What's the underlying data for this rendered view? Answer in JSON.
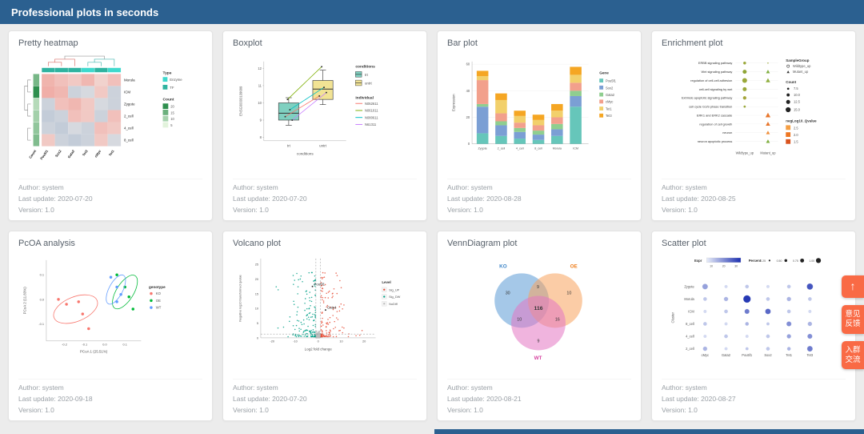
{
  "header": {
    "title": "Professional plots in seconds"
  },
  "float_buttons": {
    "top_icon": "↑",
    "feedback_line1": "意见",
    "feedback_line2": "反馈",
    "group_line1": "入群",
    "group_line2": "交流"
  },
  "cards": [
    {
      "title": "Pretty heatmap",
      "author": "Author: system",
      "updated": "Last update: 2020-07-20",
      "version": "Version: 1.0",
      "chart_data": {
        "type": "heatmap",
        "rows": [
          "Morula",
          "ICM",
          "Zygote",
          "2_cell",
          "4_cell",
          "8_cell"
        ],
        "cols": [
          "Pou5f1",
          "Sox2",
          "Gata2",
          "Tet3",
          "cMyc",
          "Tet1"
        ],
        "col_labels_bottom": [
          "Count",
          "Pou5f1",
          "Sox2",
          "Gata2",
          "Tet3",
          "cMyc",
          "Tet1"
        ],
        "col_type": [
          "TF",
          "TF",
          "TF",
          "Enzyme",
          "TF",
          "Enzyme"
        ],
        "type_colors": {
          "Enzyme": "#3fd9cd",
          "TF": "#2fb3a0"
        },
        "row_counts": [
          12,
          20,
          5,
          7,
          9,
          11
        ],
        "values": [
          [
            0.82,
            0.75,
            0.7,
            0.8,
            0.65,
            0.75
          ],
          [
            0.85,
            0.8,
            0.3,
            0.35,
            0.7,
            0.3
          ],
          [
            0.3,
            0.75,
            0.8,
            0.7,
            0.35,
            0.3
          ],
          [
            0.25,
            0.3,
            0.75,
            0.7,
            0.3,
            0.75
          ],
          [
            0.3,
            0.25,
            0.35,
            0.3,
            0.75,
            0.7
          ],
          [
            0.7,
            0.3,
            0.25,
            0.3,
            0.7,
            0.35
          ]
        ],
        "legend_type": {
          "title": "Type",
          "items": [
            {
              "label": "Enzyme",
              "color": "#3fd9cd"
            },
            {
              "label": "TF",
              "color": "#2fb3a0"
            }
          ]
        },
        "legend_count": {
          "title": "Count",
          "labels": [
            "20",
            "15",
            "10",
            "5"
          ]
        }
      }
    },
    {
      "title": "Boxplot",
      "author": "Author: system",
      "updated": "Last update: 2020-07-20",
      "version": "Version: 1.0",
      "chart_data": {
        "type": "boxplot",
        "ylabel": "ENSG00000109689",
        "xlabel": "conditions",
        "yticks": [
          8,
          9,
          10,
          11,
          12
        ],
        "ylim": [
          7.8,
          12.4
        ],
        "legend_conditions_title": "conditions",
        "legend_individual_title": "individual",
        "groups": [
          {
            "label": "trt",
            "color": "#7fd0c0",
            "box": {
              "low": 8.7,
              "q1": 9.0,
              "med": 9.4,
              "q3": 10.0,
              "high": 10.3
            }
          },
          {
            "label": "untrt",
            "color": "#f2e394",
            "box": {
              "low": 9.9,
              "q1": 10.2,
              "med": 10.8,
              "q3": 11.3,
              "high": 11.9
            }
          }
        ],
        "individuals": [
          {
            "label": "N052611",
            "color": "#F8766D",
            "trt": 9.2,
            "untrt": 10.4
          },
          {
            "label": "N061011",
            "color": "#7CAE00",
            "trt": 10.2,
            "untrt": 12.1
          },
          {
            "label": "N080611",
            "color": "#00BFC4",
            "trt": 9.6,
            "untrt": 10.9
          },
          {
            "label": "N61311",
            "color": "#C77CFF",
            "trt": 9.0,
            "untrt": 10.6
          }
        ]
      }
    },
    {
      "title": "Bar plot",
      "author": "Author: system",
      "updated": "Last update: 2020-08-28",
      "version": "Version: 1.0",
      "chart_data": {
        "type": "stacked_bar",
        "ylabel": "Expression",
        "legend_title": "Gene",
        "categories": [
          "Zygote",
          "2_cell",
          "4_cell",
          "8_cell",
          "Morula",
          "ICM"
        ],
        "yticks": [
          0,
          20,
          40,
          60
        ],
        "ylim": [
          0,
          62
        ],
        "series": [
          {
            "name": "Pou5f1",
            "color": "#66c6ba",
            "values": [
              8,
              6,
              4,
              3,
              6,
              28
            ]
          },
          {
            "name": "Sox2",
            "color": "#7b9fd4",
            "values": [
              20,
              8,
              5,
              4,
              5,
              8
            ]
          },
          {
            "name": "Gata2",
            "color": "#8fce8f",
            "values": [
              2,
              3,
              3,
              3,
              4,
              4
            ]
          },
          {
            "name": "cMyc",
            "color": "#f2a08c",
            "values": [
              18,
              6,
              4,
              4,
              5,
              6
            ]
          },
          {
            "name": "Tet1",
            "color": "#f2d06b",
            "values": [
              3,
              10,
              5,
              4,
              5,
              6
            ]
          },
          {
            "name": "Tet3",
            "color": "#f5a623",
            "values": [
              4,
              5,
              4,
              4,
              5,
              6
            ]
          }
        ]
      }
    },
    {
      "title": "Enrichment plot",
      "author": "Author: system",
      "updated": "Last update: 2020-08-25",
      "version": "Version: 1.0",
      "chart_data": {
        "type": "dot_matrix",
        "x_categories": [
          "Wildtype_up",
          "Mutant_up"
        ],
        "pathways": [
          "ERBB signaling pathway",
          "Wnt signaling pathway",
          "regulation of cell-cell adhesion",
          "cell-cell signaling by wnt",
          "Extrinsic apoptotic signaling pathway",
          "cell cycle G1/S phase transition",
          "ERK1 and ERK2 cascade",
          "regulation of cell growth",
          "neuron",
          "neuron apoptotic process"
        ],
        "points": [
          {
            "r": 0,
            "c": 0,
            "shape": "circle",
            "s": 1.8,
            "color": "#9aa83a"
          },
          {
            "r": 0,
            "c": 1,
            "shape": "circle",
            "s": 0.8,
            "color": "#9aa83a"
          },
          {
            "r": 1,
            "c": 0,
            "shape": "circle",
            "s": 2.6,
            "color": "#8fa536"
          },
          {
            "r": 1,
            "c": 1,
            "shape": "triangle",
            "s": 2.6,
            "color": "#7fae3e"
          },
          {
            "r": 2,
            "c": 0,
            "shape": "circle",
            "s": 3.1,
            "color": "#9aa83a"
          },
          {
            "r": 2,
            "c": 1,
            "shape": "triangle",
            "s": 3.0,
            "color": "#8fae3e"
          },
          {
            "r": 3,
            "c": 0,
            "shape": "circle",
            "s": 2.6,
            "color": "#9aa83a"
          },
          {
            "r": 4,
            "c": 0,
            "shape": "circle",
            "s": 2.2,
            "color": "#a5a53a"
          },
          {
            "r": 5,
            "c": 0,
            "shape": "circle",
            "s": 1.4,
            "color": "#9aa83a"
          },
          {
            "r": 6,
            "c": 1,
            "shape": "triangle",
            "s": 3.4,
            "color": "#e8762c"
          },
          {
            "r": 7,
            "c": 1,
            "shape": "triangle",
            "s": 3.0,
            "color": "#e8762c"
          },
          {
            "r": 8,
            "c": 1,
            "shape": "triangle",
            "s": 2.6,
            "color": "#ef8f3a"
          },
          {
            "r": 9,
            "c": 1,
            "shape": "triangle",
            "s": 2.6,
            "color": "#7fae3e"
          }
        ],
        "legend_sample_group": {
          "title": "SampleGroup",
          "items": [
            "Wildtype_up",
            "Mutant_up"
          ]
        },
        "legend_count": {
          "title": "Count",
          "labels": [
            "7.5",
            "10.0",
            "12.5",
            "15.0"
          ]
        },
        "legend_qvalue": {
          "title": "negLog10_Qvalue",
          "labels": [
            "2.5",
            "2.0",
            "1.5"
          ],
          "colors": [
            "#f59e42",
            "#ee7621",
            "#d9531e"
          ]
        }
      }
    },
    {
      "title": "PcOA analysis",
      "author": "Author: system",
      "updated": "Last update: 2020-09-18",
      "version": "Version: 1.0",
      "chart_data": {
        "type": "scatter",
        "xlabel": "PCoA 1 (25.51%)",
        "ylabel": "PCoA 2 (11.83%)",
        "xticks": [
          -0.2,
          -0.1,
          0.0,
          0.1
        ],
        "yticks": [
          -0.1,
          0.0,
          0.1
        ],
        "xlim": [
          -0.29,
          0.18
        ],
        "ylim": [
          -0.17,
          0.16
        ],
        "legend_title": "genotype",
        "groups": [
          {
            "name": "KO",
            "color": "#F8766D",
            "points": [
              [
                -0.23,
                0.0
              ],
              [
                -0.19,
                -0.02
              ],
              [
                -0.13,
                -0.01
              ],
              [
                -0.11,
                -0.06
              ],
              [
                -0.08,
                -0.12
              ]
            ],
            "ellipse": {
              "cx": -0.145,
              "cy": -0.04,
              "rx": 0.115,
              "ry": 0.05,
              "angle": -22
            }
          },
          {
            "name": "OE",
            "color": "#00BA38",
            "points": [
              [
                0.06,
                0.1
              ],
              [
                0.1,
                0.05
              ],
              [
                0.12,
                0.01
              ],
              [
                0.14,
                -0.04
              ]
            ],
            "ellipse": {
              "cx": 0.1,
              "cy": 0.03,
              "rx": 0.095,
              "ry": 0.035,
              "angle": -58
            }
          },
          {
            "name": "WT",
            "color": "#619CFF",
            "points": [
              [
                0.03,
                0.09
              ],
              [
                0.06,
                0.05
              ],
              [
                0.08,
                0.02
              ],
              [
                0.06,
                -0.01
              ]
            ],
            "ellipse": {
              "cx": 0.055,
              "cy": 0.04,
              "rx": 0.08,
              "ry": 0.028,
              "angle": -62
            }
          }
        ]
      }
    },
    {
      "title": "Volcano plot",
      "author": "Author: system",
      "updated": "Last update: 2020-07-20",
      "version": "Version: 1.0",
      "chart_data": {
        "type": "volcano",
        "xlabel": "Log2 fold change",
        "ylabel": "Negative log10 transformed qvalue",
        "xticks": [
          -20,
          -10,
          0,
          10,
          20
        ],
        "yticks": [
          0,
          5,
          10,
          15,
          20,
          25
        ],
        "xlim": [
          -25,
          25
        ],
        "ylim": [
          0,
          27
        ],
        "vlines": [
          -1,
          1
        ],
        "hline": 1.3,
        "legend_title": "Level",
        "classes": [
          {
            "name": "Sig_UP",
            "color": "#E64B35",
            "n": 130
          },
          {
            "name": "Sig_DW",
            "color": "#00A087",
            "n": 150
          },
          {
            "name": "NoDiff",
            "color": "#BDBDBD",
            "n": 160
          }
        ],
        "annotations": [
          {
            "label": "Pou5f1",
            "x": -2.5,
            "y": 17.5
          },
          {
            "label": "Gata4",
            "x": 3.2,
            "y": 9.5
          }
        ],
        "seed": 42
      }
    },
    {
      "title": "VennDiagram plot",
      "author": "Author: system",
      "updated": "Last update: 2020-08-21",
      "version": "Version: 1.0",
      "chart_data": {
        "type": "venn",
        "sets": [
          {
            "name": "KO",
            "fill": "#5b9bd5",
            "label_color": "#3d85c8"
          },
          {
            "name": "OE",
            "fill": "#f7a35c",
            "label_color": "#ef7d1a"
          },
          {
            "name": "WT",
            "fill": "#e377c2",
            "label_color": "#d6409f"
          }
        ],
        "counts": {
          "KO": "30",
          "KO_OE": "9",
          "OE": "10",
          "KO_WT": "10",
          "KO_OE_WT": "116",
          "OE_WT": "16",
          "WT": "9"
        }
      }
    },
    {
      "title": "Scatter plot",
      "author": "Author: system",
      "updated": "Last update: 2020-08-27",
      "version": "Version: 1.0",
      "chart_data": {
        "type": "dotplot",
        "ylabel": "Cluster",
        "x_categories": [
          "cMyc",
          "Gata2",
          "Pou5f1",
          "Sox2",
          "Tet1",
          "Tet3"
        ],
        "y_categories": [
          "Zygote",
          "Morula",
          "ICM",
          "8_cell",
          "4_cell",
          "2_cell"
        ],
        "legend_expr": {
          "title": "Expr",
          "ticks": [
            "10",
            "20",
            "30"
          ],
          "from": "#e8edf9",
          "to": "#1c2fb0"
        },
        "legend_percent": {
          "title": "Percent",
          "labels": [
            "0.25",
            "0.50",
            "0.75",
            "1.00"
          ]
        },
        "cells": [
          [
            [
              0.6,
              0.4
            ],
            [
              0.2,
              0.1
            ],
            [
              0.3,
              0.2
            ],
            [
              0.2,
              0.1
            ],
            [
              0.3,
              0.2
            ],
            [
              0.7,
              0.8
            ]
          ],
          [
            [
              0.3,
              0.2
            ],
            [
              0.4,
              0.3
            ],
            [
              0.9,
              0.95
            ],
            [
              0.3,
              0.2
            ],
            [
              0.4,
              0.3
            ],
            [
              0.3,
              0.2
            ]
          ],
          [
            [
              0.2,
              0.1
            ],
            [
              0.3,
              0.2
            ],
            [
              0.5,
              0.6
            ],
            [
              0.6,
              0.7
            ],
            [
              0.3,
              0.2
            ],
            [
              0.2,
              0.1
            ]
          ],
          [
            [
              0.3,
              0.2
            ],
            [
              0.2,
              0.1
            ],
            [
              0.3,
              0.3
            ],
            [
              0.2,
              0.2
            ],
            [
              0.5,
              0.5
            ],
            [
              0.4,
              0.3
            ]
          ],
          [
            [
              0.2,
              0.1
            ],
            [
              0.3,
              0.2
            ],
            [
              0.2,
              0.1
            ],
            [
              0.3,
              0.2
            ],
            [
              0.4,
              0.4
            ],
            [
              0.5,
              0.5
            ]
          ],
          [
            [
              0.4,
              0.3
            ],
            [
              0.2,
              0.1
            ],
            [
              0.2,
              0.2
            ],
            [
              0.3,
              0.2
            ],
            [
              0.3,
              0.3
            ],
            [
              0.6,
              0.6
            ]
          ]
        ]
      }
    }
  ]
}
